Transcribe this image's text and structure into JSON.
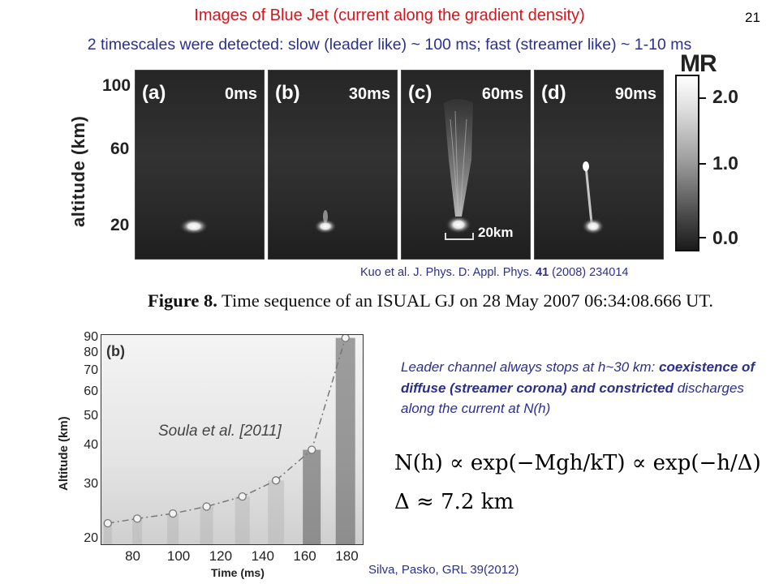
{
  "slide": {
    "title": "Images of Blue Jet (current along the gradient density)",
    "number": "21",
    "subtitle": "2 timescales were detected: slow (leader like) ~ 100 ms; fast (streamer like) ~ 1-10 ms"
  },
  "figure8": {
    "y_axis_label": "altitude (km)",
    "y_ticks": [
      "100",
      "60",
      "20"
    ],
    "panels": [
      {
        "label": "(a)",
        "time": "0ms"
      },
      {
        "label": "(b)",
        "time": "30ms"
      },
      {
        "label": "(c)",
        "time": "60ms"
      },
      {
        "label": "(d)",
        "time": "90ms"
      }
    ],
    "scale_bar_label": "20km",
    "colorbar": {
      "label": "MR",
      "ticks": [
        "2.0",
        "1.0",
        "0.0"
      ]
    },
    "citation_prefix": "Kuo et al. J. Phys. D: Appl. Phys. ",
    "citation_volume": "41",
    "citation_suffix": " (2008) 234014",
    "caption_bold": "Figure 8.",
    "caption_text": " Time sequence of an ISUAL GJ on 28 May 2007 06:34:08.666 UT."
  },
  "chart_data": {
    "type": "scatter",
    "panel_label": "(b)",
    "annotation": "Soula et al. [2011]",
    "xlabel": "Time (ms)",
    "ylabel": "Altitude (km)",
    "x_ticks": [
      "80",
      "100",
      "120",
      "140",
      "160",
      "180"
    ],
    "y_ticks": [
      "90",
      "80",
      "70",
      "60",
      "50",
      "40",
      "30",
      "20"
    ],
    "xlim": [
      63,
      188
    ],
    "ylim": [
      19,
      92
    ],
    "y_scale": "log",
    "points": [
      {
        "x": 66,
        "y": 22.5
      },
      {
        "x": 80,
        "y": 23.3
      },
      {
        "x": 97,
        "y": 24.2
      },
      {
        "x": 113,
        "y": 25.5
      },
      {
        "x": 130,
        "y": 27.5
      },
      {
        "x": 146,
        "y": 31
      },
      {
        "x": 163,
        "y": 39
      },
      {
        "x": 179,
        "y": 90
      }
    ]
  },
  "silva_citation": "Silva, Pasko, GRL 39(2012)",
  "leader_text": {
    "line1": "Leader channel always stops at h~30 km: ",
    "bold": "coexistence of diffuse (streamer corona) and constricted",
    "tail": " discharges along the current at N(h)"
  },
  "formulas": {
    "n_h": "N(h) ∝ exp(−Mgh/kT) ∝ exp(−h/Δ)",
    "delta": "Δ ≈ 7.2 km"
  }
}
